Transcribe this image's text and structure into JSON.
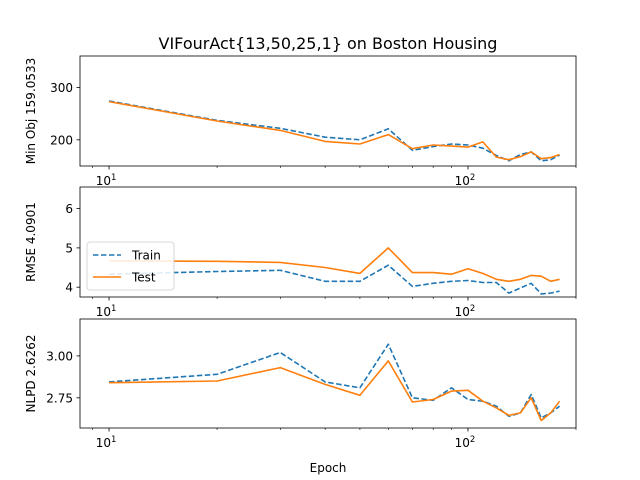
{
  "chart_data": [
    {
      "type": "line",
      "title": "VIFourAct{13,50,25,1} on Boston Housing",
      "xlabel": "",
      "ylabel": "Min Obj 159.0533",
      "xscale": "log",
      "xlim": [
        8.3,
        200
      ],
      "ylim": [
        150,
        360
      ],
      "yticks": [
        200,
        300
      ],
      "ytick_labels": [
        "200",
        "300"
      ],
      "xticks": [
        10,
        100
      ],
      "xtick_labels": [
        {
          "base": "10",
          "exp": "1"
        },
        {
          "base": "10",
          "exp": "2"
        }
      ],
      "x": [
        10,
        20,
        30,
        40,
        50,
        60,
        70,
        80,
        90,
        100,
        110,
        120,
        130,
        140,
        150,
        160,
        170,
        180
      ],
      "series": [
        {
          "name": "Train",
          "color": "#1f77b4",
          "dash": "dashed",
          "values": [
            274,
            237,
            222,
            205,
            200,
            221,
            180,
            187,
            192,
            190,
            184,
            170,
            160,
            172,
            177,
            160,
            162,
            171
          ]
        },
        {
          "name": "Test",
          "color": "#ff7f0e",
          "dash": "solid",
          "values": [
            273,
            236,
            218,
            197,
            192,
            210,
            183,
            190,
            188,
            186,
            196,
            167,
            162,
            168,
            177,
            164,
            166,
            172
          ]
        }
      ],
      "legend": "none"
    },
    {
      "type": "line",
      "title": "",
      "xlabel": "",
      "ylabel": "RMSE 4.0901",
      "xscale": "log",
      "xlim": [
        8.3,
        200
      ],
      "ylim": [
        3.75,
        6.55
      ],
      "yticks": [
        4,
        5,
        6
      ],
      "ytick_labels": [
        "4",
        "5",
        "6"
      ],
      "xticks": [
        10,
        100
      ],
      "xtick_labels": [
        {
          "base": "10",
          "exp": "1"
        },
        {
          "base": "10",
          "exp": "2"
        }
      ],
      "x": [
        10,
        20,
        30,
        40,
        50,
        60,
        70,
        80,
        90,
        100,
        110,
        120,
        130,
        140,
        150,
        160,
        170,
        180
      ],
      "series": [
        {
          "name": "Train",
          "color": "#1f77b4",
          "dash": "dashed",
          "values": [
            4.33,
            4.4,
            4.43,
            4.15,
            4.15,
            4.56,
            4.02,
            4.1,
            4.15,
            4.17,
            4.12,
            4.12,
            3.85,
            3.98,
            4.1,
            3.83,
            3.85,
            3.9
          ]
        },
        {
          "name": "Test",
          "color": "#ff7f0e",
          "dash": "solid",
          "values": [
            4.67,
            4.66,
            4.63,
            4.5,
            4.35,
            5.0,
            4.37,
            4.37,
            4.33,
            4.47,
            4.35,
            4.2,
            4.15,
            4.2,
            4.3,
            4.28,
            4.15,
            4.2
          ]
        }
      ],
      "legend": "lower-left"
    },
    {
      "type": "line",
      "title": "",
      "xlabel": "Epoch",
      "ylabel": "NLPD 2.6262",
      "xscale": "log",
      "xlim": [
        8.3,
        200
      ],
      "ylim": [
        2.57,
        3.22
      ],
      "yticks": [
        2.75,
        3.0
      ],
      "ytick_labels": [
        "2.75",
        "3.00"
      ],
      "xticks": [
        10,
        100
      ],
      "xtick_labels": [
        {
          "base": "10",
          "exp": "1"
        },
        {
          "base": "10",
          "exp": "2"
        }
      ],
      "x": [
        10,
        20,
        30,
        40,
        50,
        60,
        70,
        80,
        90,
        100,
        110,
        120,
        130,
        140,
        150,
        160,
        170,
        180
      ],
      "series": [
        {
          "name": "Train",
          "color": "#1f77b4",
          "dash": "dashed",
          "values": [
            2.845,
            2.89,
            3.02,
            2.845,
            2.81,
            3.07,
            2.75,
            2.735,
            2.81,
            2.74,
            2.73,
            2.7,
            2.64,
            2.66,
            2.77,
            2.63,
            2.66,
            2.7
          ]
        },
        {
          "name": "Test",
          "color": "#ff7f0e",
          "dash": "solid",
          "values": [
            2.84,
            2.85,
            2.93,
            2.83,
            2.765,
            2.97,
            2.725,
            2.74,
            2.79,
            2.795,
            2.73,
            2.69,
            2.645,
            2.66,
            2.75,
            2.615,
            2.66,
            2.73
          ]
        }
      ],
      "legend": "none"
    }
  ]
}
